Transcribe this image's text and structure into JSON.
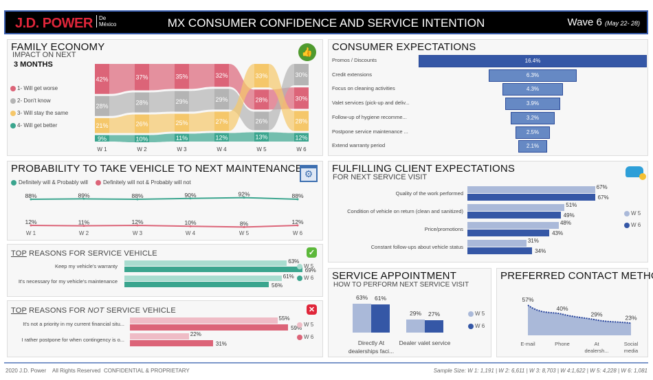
{
  "header": {
    "brand": "J.D. POWER",
    "brand_sub_1": "De",
    "brand_sub_2": "México",
    "title": "MX CONSUMER CONFIDENCE AND SERVICE INTENTION",
    "wave": "Wave 6",
    "wave_dates": "(May 22- 28)"
  },
  "family_economy": {
    "title": "FAMILY ECONOMY",
    "subtitle": "IMPACT ON NEXT",
    "subtitle_bold": "3 MONTHS",
    "icon": "money-thumbs-up-icon"
  },
  "probability": {
    "title": "PROBABILITY TO TAKE VEHICLE TO NEXT MAINTENANCE",
    "icon": "calendar-gear-icon"
  },
  "top_reasons": {
    "title_prefix": "TOP",
    "title_rest": " REASONS FOR SERVICE VEHICLE",
    "icon": "check-icon"
  },
  "not_reasons": {
    "title_prefix": "TOP",
    "title_mid": " REASONS FOR ",
    "title_em": "NOT",
    "title_rest": " SERVICE VEHICLE",
    "icon": "x-icon"
  },
  "consumer_expectations": {
    "title": "CONSUMER EXPECTATIONS"
  },
  "fulfilling": {
    "title": "FULFILLING CLIENT EXPECTATIONS",
    "subtitle": "FOR NEXT SERVICE VISIT",
    "icon": "car-service-icon"
  },
  "service_appointment": {
    "title": "SERVICE APPOINTMENT",
    "subtitle": "HOW TO PERFORM NEXT SERVICE VISIT"
  },
  "contact": {
    "title": "PREFERRED CONTACT METHOD"
  },
  "footer": {
    "copyright": "2020 J.D. Power",
    "rights": "All Rights Reserved",
    "confidential": "CONFIDENTIAL & PROPRIETARY",
    "sample": "Sample Size: W 1: 1,191 | W 2: 6,611 | W 3: 8,703 | W 4:1,622 | W 5: 4,228 | W 6: 1,081"
  },
  "colors": {
    "worse": "#dc6478",
    "dont_know": "#b4b4b4",
    "same": "#f5c76a",
    "better": "#3aa58e",
    "blue_dark": "#3557a6",
    "blue_light": "#aab9d9",
    "teal_light": "#a8dccf",
    "pink_light": "#efbcc6"
  },
  "chart_data": [
    {
      "id": "family_economy",
      "type": "area",
      "categories": [
        "W 1",
        "W 2",
        "W 3",
        "W 4",
        "W 5",
        "W 6"
      ],
      "series": [
        {
          "key": "worse",
          "name": "1- Will get worse",
          "values": [
            42,
            37,
            35,
            32,
            28,
            30
          ]
        },
        {
          "key": "dont_know",
          "name": "2- Don't know",
          "values": [
            28,
            28,
            29,
            29,
            26,
            30
          ]
        },
        {
          "key": "same",
          "name": "3- Will stay the same",
          "values": [
            21,
            26,
            25,
            27,
            33,
            28
          ]
        },
        {
          "key": "better",
          "name": "4- Will get better",
          "values": [
            9,
            10,
            11,
            12,
            13,
            12
          ]
        }
      ],
      "stack_order": [
        [
          "worse",
          "dont_know",
          "same",
          "better"
        ],
        [
          "worse",
          "dont_know",
          "same",
          "better"
        ],
        [
          "worse",
          "dont_know",
          "same",
          "better"
        ],
        [
          "worse",
          "dont_know",
          "same",
          "better"
        ],
        [
          "same",
          "worse",
          "dont_know",
          "better"
        ],
        [
          "dont_know",
          "worse",
          "same",
          "better"
        ]
      ]
    },
    {
      "id": "probability",
      "type": "line",
      "categories": [
        "W 1",
        "W 2",
        "W 3",
        "W 4",
        "W 5",
        "W 6"
      ],
      "series": [
        {
          "name": "Definitely will & Probably will",
          "values": [
            88,
            89,
            88,
            90,
            92,
            88
          ]
        },
        {
          "name": "Definitely will not & Probably will not",
          "values": [
            12,
            11,
            12,
            10,
            8,
            12
          ]
        }
      ]
    },
    {
      "id": "top_reasons",
      "type": "bar",
      "legend": [
        "W 5",
        "W 6"
      ],
      "categories": [
        "Keep my vehicle's warranty",
        "It's necessary for my vehicle's maintenance"
      ],
      "series": [
        {
          "name": "W 5",
          "values": [
            63,
            61
          ]
        },
        {
          "name": "W 6",
          "values": [
            69,
            56
          ]
        }
      ]
    },
    {
      "id": "not_reasons",
      "type": "bar",
      "legend": [
        "W 5",
        "W 6"
      ],
      "categories": [
        "It's not a priority in my current financial situ...",
        "I rather postpone for when contingency is o..."
      ],
      "series": [
        {
          "name": "W 5",
          "values": [
            55,
            22
          ]
        },
        {
          "name": "W 6",
          "values": [
            59,
            31
          ]
        }
      ]
    },
    {
      "id": "consumer_expectations",
      "type": "bar",
      "categories": [
        "Promos / Discounts",
        "Credit extensions",
        "Focus on cleaning activities",
        "Valet services (pick-up and deliv...",
        "Follow-up of hygiene recomme...",
        "Postpone service maintenance ...",
        "Extend warranty period"
      ],
      "values": [
        16.4,
        6.3,
        4.3,
        3.9,
        3.2,
        2.5,
        2.1
      ],
      "labels": [
        "16.4%",
        "6.3%",
        "4.3%",
        "3.9%",
        "3.2%",
        "2.5%",
        "2.1%"
      ]
    },
    {
      "id": "fulfilling",
      "type": "bar",
      "legend": [
        "W 5",
        "W 6"
      ],
      "categories": [
        "Quality of the work performed",
        "Condition of vehicle on return (clean and sanitized)",
        "Price/promotions",
        "Constant follow-ups about vehicle status"
      ],
      "series": [
        {
          "name": "W 5",
          "values": [
            67,
            51,
            48,
            31
          ]
        },
        {
          "name": "W 6",
          "values": [
            67,
            49,
            43,
            34
          ]
        }
      ]
    },
    {
      "id": "service_appointment",
      "type": "bar",
      "legend": [
        "W 5",
        "W 6"
      ],
      "categories": [
        "Directly At dealerships faci...",
        "Dealer valet service"
      ],
      "series": [
        {
          "name": "W 5",
          "values": [
            63,
            29
          ]
        },
        {
          "name": "W 6",
          "values": [
            61,
            27
          ]
        }
      ]
    },
    {
      "id": "contact",
      "type": "area",
      "categories": [
        "E-mail",
        "Phone",
        "At dealersh...",
        "Social media"
      ],
      "values": [
        57,
        40,
        29,
        23
      ]
    }
  ]
}
